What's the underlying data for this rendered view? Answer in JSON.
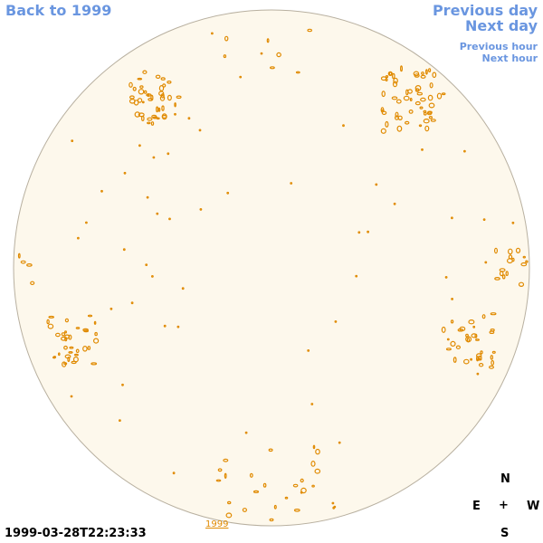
{
  "nav": {
    "back_label": "Back to 1999",
    "prev_day_label": "Previous day",
    "next_day_label": "Next day",
    "prev_hour_label": "Previous hour",
    "next_hour_label": "Next hour"
  },
  "image": {
    "timestamp": "1999-03-28T22:23:33",
    "year_link": "1999",
    "disk_color": "#fdf8ec",
    "contour_color": "#e08a00"
  },
  "compass": {
    "north": "N",
    "east": "E",
    "center": "+",
    "west": "W",
    "south": "S"
  }
}
